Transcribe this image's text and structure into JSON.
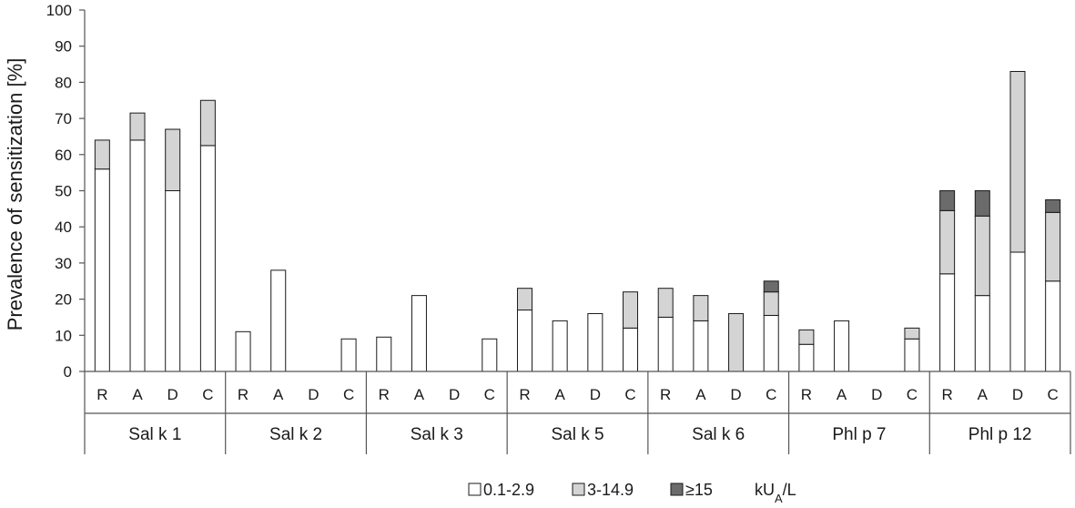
{
  "chart_data": {
    "type": "bar",
    "stacked": true,
    "ylabel": "Prevalence of sensitization [%]",
    "ylim": [
      0,
      100
    ],
    "yticks": [
      "0",
      "10",
      "20",
      "30",
      "40",
      "50",
      "60",
      "70",
      "80",
      "90",
      "100"
    ],
    "grid": false,
    "sub_categories": [
      "R",
      "A",
      "D",
      "C"
    ],
    "groups": [
      "Sal k 1",
      "Sal k 2",
      "Sal k 3",
      "Sal k 5",
      "Sal k 6",
      "Phl p 7",
      "Phl p 12"
    ],
    "series": [
      {
        "name": "0.1-2.9",
        "color": "#ffffff",
        "values": [
          [
            56,
            64,
            50,
            62.5
          ],
          [
            11,
            28,
            0,
            9
          ],
          [
            9.5,
            21,
            0,
            9
          ],
          [
            17,
            14,
            16,
            12
          ],
          [
            15,
            14,
            0,
            15.5
          ],
          [
            7.5,
            14,
            0,
            9
          ],
          [
            27,
            21,
            33,
            25
          ]
        ]
      },
      {
        "name": "3-14.9",
        "color": "#d4d4d4",
        "values": [
          [
            8,
            7.5,
            17,
            12.5
          ],
          [
            0,
            0,
            0,
            0
          ],
          [
            0,
            0,
            0,
            0
          ],
          [
            6,
            0,
            0,
            10
          ],
          [
            8,
            7,
            16,
            6.5
          ],
          [
            4,
            0,
            0,
            3
          ],
          [
            17.5,
            22,
            50,
            19
          ]
        ]
      },
      {
        "name": "≥15",
        "color": "#6b6b6b",
        "values": [
          [
            0,
            0,
            0,
            0
          ],
          [
            0,
            0,
            0,
            0
          ],
          [
            0,
            0,
            0,
            0
          ],
          [
            0,
            0,
            0,
            0
          ],
          [
            0,
            0,
            0,
            3
          ],
          [
            0,
            0,
            0,
            0
          ],
          [
            5.5,
            7,
            0,
            3.5
          ]
        ]
      }
    ],
    "legend": {
      "position": "bottom",
      "unit_main": "kU",
      "unit_sub": "A",
      "unit_tail": "/L"
    }
  }
}
